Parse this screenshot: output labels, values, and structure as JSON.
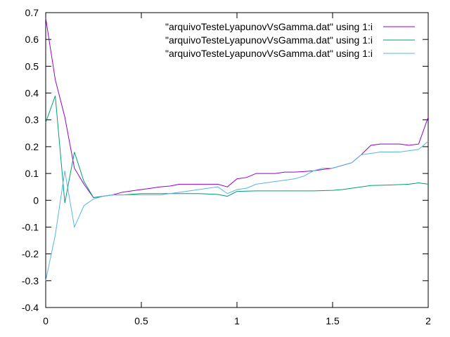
{
  "chart_data": {
    "type": "line",
    "title": "",
    "xlabel": "",
    "ylabel": "",
    "xlim": [
      0,
      2
    ],
    "ylim": [
      -0.4,
      0.7
    ],
    "x_ticks": [
      "0",
      "0.5",
      "1",
      "1.5",
      "2"
    ],
    "y_ticks": [
      "0.7",
      "0.6",
      "0.5",
      "0.4",
      "0.3",
      "0.2",
      "0.1",
      "0",
      "-0.1",
      "-0.2",
      "-0.3",
      "-0.4"
    ],
    "grid": false,
    "legend_position": "top-right",
    "series": [
      {
        "name": "\"arquivoTesteLyapunovVsGamma.dat\" using 1:i",
        "color": "#9400d3",
        "points": [
          [
            0,
            0.68
          ],
          [
            0.05,
            0.45
          ],
          [
            0.1,
            0.31
          ],
          [
            0.15,
            0.12
          ],
          [
            0.2,
            0.06
          ],
          [
            0.25,
            0.01
          ],
          [
            0.3,
            0.015
          ],
          [
            0.35,
            0.02
          ],
          [
            0.4,
            0.03
          ],
          [
            0.45,
            0.035
          ],
          [
            0.5,
            0.04
          ],
          [
            0.55,
            0.045
          ],
          [
            0.6,
            0.05
          ],
          [
            0.65,
            0.053
          ],
          [
            0.7,
            0.06
          ],
          [
            0.75,
            0.06
          ],
          [
            0.8,
            0.06
          ],
          [
            0.85,
            0.06
          ],
          [
            0.9,
            0.06
          ],
          [
            0.95,
            0.05
          ],
          [
            1.0,
            0.08
          ],
          [
            1.05,
            0.085
          ],
          [
            1.1,
            0.1
          ],
          [
            1.15,
            0.1
          ],
          [
            1.2,
            0.1
          ],
          [
            1.25,
            0.105
          ],
          [
            1.3,
            0.105
          ],
          [
            1.35,
            0.107
          ],
          [
            1.4,
            0.11
          ],
          [
            1.45,
            0.115
          ],
          [
            1.5,
            0.12
          ],
          [
            1.55,
            0.13
          ],
          [
            1.6,
            0.14
          ],
          [
            1.65,
            0.17
          ],
          [
            1.7,
            0.205
          ],
          [
            1.75,
            0.21
          ],
          [
            1.8,
            0.21
          ],
          [
            1.85,
            0.21
          ],
          [
            1.9,
            0.205
          ],
          [
            1.95,
            0.21
          ],
          [
            2.0,
            0.31
          ]
        ]
      },
      {
        "name": "\"arquivoTesteLyapunovVsGamma.dat\" using 1:i",
        "color": "#009e73",
        "points": [
          [
            0,
            0.29
          ],
          [
            0.05,
            0.39
          ],
          [
            0.1,
            -0.01
          ],
          [
            0.15,
            0.18
          ],
          [
            0.2,
            0.07
          ],
          [
            0.25,
            0.01
          ],
          [
            0.3,
            0.015
          ],
          [
            0.35,
            0.02
          ],
          [
            0.4,
            0.02
          ],
          [
            0.5,
            0.025
          ],
          [
            0.6,
            0.025
          ],
          [
            0.7,
            0.025
          ],
          [
            0.8,
            0.025
          ],
          [
            0.9,
            0.022
          ],
          [
            0.95,
            0.015
          ],
          [
            1.0,
            0.033
          ],
          [
            1.1,
            0.035
          ],
          [
            1.2,
            0.035
          ],
          [
            1.3,
            0.035
          ],
          [
            1.4,
            0.035
          ],
          [
            1.5,
            0.037
          ],
          [
            1.55,
            0.04
          ],
          [
            1.6,
            0.045
          ],
          [
            1.7,
            0.055
          ],
          [
            1.8,
            0.057
          ],
          [
            1.9,
            0.06
          ],
          [
            1.95,
            0.065
          ],
          [
            2.0,
            0.06
          ]
        ]
      },
      {
        "name": "\"arquivoTesteLyapunovVsGamma.dat\" using 1:i",
        "color": "#56b4e9",
        "points": [
          [
            0,
            -0.3
          ],
          [
            0.05,
            -0.13
          ],
          [
            0.1,
            0.11
          ],
          [
            0.15,
            -0.1
          ],
          [
            0.2,
            -0.02
          ],
          [
            0.25,
            0.005
          ],
          [
            0.3,
            0.015
          ],
          [
            0.35,
            0.02
          ],
          [
            0.4,
            0.02
          ],
          [
            0.5,
            0.02
          ],
          [
            0.6,
            0.02
          ],
          [
            0.7,
            0.03
          ],
          [
            0.8,
            0.04
          ],
          [
            0.9,
            0.05
          ],
          [
            0.95,
            0.025
          ],
          [
            1.0,
            0.04
          ],
          [
            1.05,
            0.045
          ],
          [
            1.1,
            0.06
          ],
          [
            1.15,
            0.065
          ],
          [
            1.2,
            0.07
          ],
          [
            1.25,
            0.075
          ],
          [
            1.3,
            0.08
          ],
          [
            1.35,
            0.09
          ],
          [
            1.4,
            0.11
          ],
          [
            1.45,
            0.12
          ],
          [
            1.5,
            0.12
          ],
          [
            1.55,
            0.13
          ],
          [
            1.6,
            0.14
          ],
          [
            1.65,
            0.17
          ],
          [
            1.7,
            0.175
          ],
          [
            1.75,
            0.18
          ],
          [
            1.8,
            0.18
          ],
          [
            1.85,
            0.18
          ],
          [
            1.9,
            0.185
          ],
          [
            1.95,
            0.19
          ],
          [
            2.0,
            0.22
          ]
        ]
      }
    ]
  }
}
